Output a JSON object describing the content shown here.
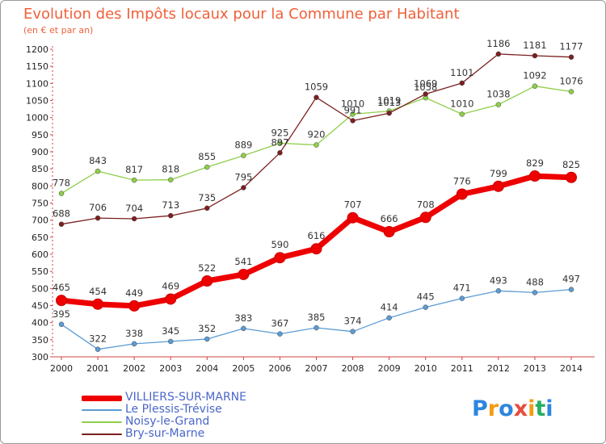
{
  "title": "Evolution des Impôts locaux pour la Commune par Habitant",
  "subtitle": "(en € et par an)",
  "logo": {
    "letters": [
      "P",
      "r",
      "o",
      "x",
      "i",
      "t",
      "i"
    ],
    "colors": [
      "#2e86de",
      "#f39c12",
      "#2e86de",
      "#e74c3c",
      "#f39c12",
      "#27ae60",
      "#2e86de"
    ]
  },
  "chart_data": {
    "type": "line",
    "x": [
      "2000",
      "2001",
      "2002",
      "2003",
      "2004",
      "2005",
      "2006",
      "2007",
      "2008",
      "2009",
      "2010",
      "2011",
      "2012",
      "2013",
      "2014"
    ],
    "yticks": [
      300,
      350,
      400,
      450,
      500,
      550,
      600,
      650,
      700,
      750,
      800,
      850,
      900,
      950,
      1000,
      1050,
      1100,
      1150,
      1200
    ],
    "ylim": [
      300,
      1200
    ],
    "grid": false,
    "legend_position": "bottom-left",
    "series": [
      {
        "name": "VILLIERS-SUR-MARNE",
        "color": "#ee0000",
        "values": [
          465,
          454,
          449,
          469,
          522,
          541,
          590,
          616,
          707,
          666,
          708,
          776,
          799,
          829,
          825
        ],
        "labels": [
          "465",
          "454",
          "449",
          "469",
          "522",
          "541",
          "590",
          "616",
          "707",
          "666",
          "708",
          "776",
          "799",
          "829",
          "825"
        ]
      },
      {
        "name": "Le Plessis-Trévise",
        "color": "#5b9bd5",
        "values": [
          395,
          322,
          338,
          345,
          352,
          383,
          367,
          385,
          374,
          414,
          445,
          471,
          493,
          488,
          497
        ],
        "labels": [
          "395",
          "322",
          "338",
          "345",
          "352",
          "383",
          "367",
          "385",
          "374",
          "414",
          "445",
          "471",
          "493",
          "488",
          "497"
        ]
      },
      {
        "name": "Noisy-le-Grand",
        "color": "#8fce4a",
        "values": [
          778,
          843,
          817,
          818,
          855,
          889,
          925,
          920,
          1010,
          1019,
          1058,
          1010,
          1038,
          1092,
          1076
        ],
        "labels": [
          "778",
          "843",
          "817",
          "818",
          "855",
          "889",
          "925",
          "920",
          "1010",
          "1019",
          "1058",
          "1010",
          "1038",
          "1092",
          "1076"
        ]
      },
      {
        "name": "Bry-sur-Marne",
        "color": "#7b1f1f",
        "values": [
          688,
          706,
          704,
          713,
          735,
          795,
          897,
          1059,
          991,
          1013,
          1069,
          1101,
          1186,
          1181,
          1177
        ],
        "labels": [
          "688",
          "706",
          "704",
          "713",
          "735",
          "795",
          "897",
          "1059",
          "991",
          "1013",
          "1069",
          "1101",
          "1186",
          "1181",
          "1177"
        ]
      }
    ]
  }
}
